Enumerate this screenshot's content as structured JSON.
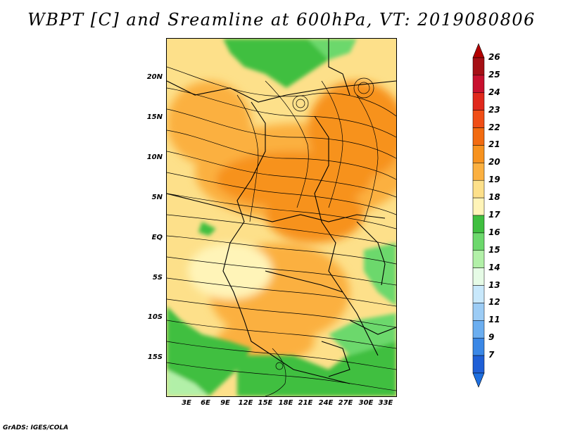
{
  "title": "WBPT [C] and Sreamline at 600hPa, VT: 2019080806",
  "credit": "GrADS: IGES/COLA",
  "map": {
    "lat_labels": [
      "20N",
      "15N",
      "10N",
      "5N",
      "EQ",
      "5S",
      "10S",
      "15S"
    ],
    "lon_labels": [
      "3E",
      "6E",
      "9E",
      "12E",
      "15E",
      "18E",
      "21E",
      "24E",
      "27E",
      "30E",
      "33E"
    ]
  },
  "colorbar": {
    "labels": [
      "26",
      "25",
      "24",
      "23",
      "22",
      "21",
      "20",
      "19",
      "18",
      "17",
      "16",
      "15",
      "14",
      "13",
      "12",
      "11",
      "9",
      "7"
    ],
    "colors": [
      "#a50f15",
      "#c8102e",
      "#e0281c",
      "#f04e16",
      "#f26b10",
      "#f7921e",
      "#fbb040",
      "#fde08a",
      "#fff4b8",
      "#3fbf3f",
      "#6cd86c",
      "#b2f0a8",
      "#e6fbe6",
      "#c8e8fb",
      "#9cccf5",
      "#6baef0",
      "#3a87e6",
      "#1f5fd6"
    ],
    "top_color": "#b30000",
    "bottom_color": "#1e6fe0"
  }
}
